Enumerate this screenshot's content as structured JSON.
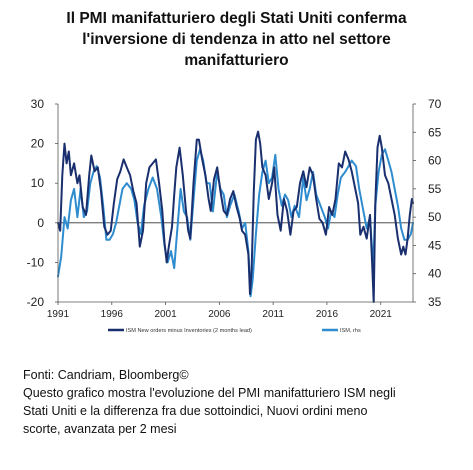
{
  "title_lines": [
    "Il PMI manifatturiero degli Stati Uniti conferma",
    "l'inversione di tendenza in atto nel settore",
    "manifatturiero"
  ],
  "caption_lines": [
    "Fonti: Candriam, Bloomberg©",
    "Questo grafico mostra l'evoluzione del PMI manifatturiero ISM negli",
    "Stati Uniti e la differenza fra due sottoindici, Nuovi ordini meno",
    "scorte, avanzata per 2 mesi"
  ],
  "chart_data": {
    "type": "line",
    "x_range": [
      1991,
      2024
    ],
    "x_ticks": [
      "1991",
      "1996",
      "2001",
      "2006",
      "2011",
      "2016",
      "2021"
    ],
    "y_left": {
      "range": [
        -20,
        30
      ],
      "ticks": [
        "30",
        "20",
        "10",
        "0",
        "-10",
        "-20"
      ]
    },
    "y_right": {
      "range": [
        35,
        70
      ],
      "ticks": [
        "70",
        "65",
        "60",
        "55",
        "50",
        "45",
        "40",
        "35"
      ]
    },
    "zero_line": true,
    "legend_position": "bottom",
    "colors": {
      "series1": "#1a2f6e",
      "series2": "#2e8ccf"
    },
    "series": [
      {
        "name": "ISM New orders minus Inventories (2 months lead)",
        "axis": "left",
        "points": [
          [
            1991.0,
            0
          ],
          [
            1991.2,
            -2
          ],
          [
            1991.4,
            12
          ],
          [
            1991.6,
            20
          ],
          [
            1991.8,
            15
          ],
          [
            1992.0,
            18
          ],
          [
            1992.2,
            12
          ],
          [
            1992.5,
            15
          ],
          [
            1992.8,
            10
          ],
          [
            1993.0,
            12
          ],
          [
            1993.3,
            4
          ],
          [
            1993.6,
            2
          ],
          [
            1993.9,
            12
          ],
          [
            1994.1,
            17
          ],
          [
            1994.4,
            13
          ],
          [
            1994.7,
            14
          ],
          [
            1995.0,
            8
          ],
          [
            1995.3,
            -1
          ],
          [
            1995.6,
            -3
          ],
          [
            1995.9,
            -2
          ],
          [
            1996.2,
            5
          ],
          [
            1996.5,
            11
          ],
          [
            1996.8,
            13
          ],
          [
            1997.1,
            16
          ],
          [
            1997.4,
            14
          ],
          [
            1997.7,
            12
          ],
          [
            1998.0,
            8
          ],
          [
            1998.3,
            5
          ],
          [
            1998.6,
            -6
          ],
          [
            1998.9,
            -2
          ],
          [
            1999.2,
            10
          ],
          [
            1999.5,
            14
          ],
          [
            1999.8,
            15
          ],
          [
            2000.1,
            16
          ],
          [
            2000.4,
            10
          ],
          [
            2000.7,
            3
          ],
          [
            2000.9,
            -5
          ],
          [
            2001.1,
            -10
          ],
          [
            2001.3,
            -6
          ],
          [
            2001.6,
            -1
          ],
          [
            2001.8,
            7
          ],
          [
            2002.0,
            14
          ],
          [
            2002.3,
            19
          ],
          [
            2002.6,
            12
          ],
          [
            2002.9,
            3
          ],
          [
            2003.1,
            -2
          ],
          [
            2003.3,
            -4
          ],
          [
            2003.6,
            10
          ],
          [
            2003.9,
            21
          ],
          [
            2004.1,
            21
          ],
          [
            2004.4,
            16
          ],
          [
            2004.7,
            12
          ],
          [
            2005.0,
            6
          ],
          [
            2005.2,
            3
          ],
          [
            2005.5,
            11
          ],
          [
            2005.8,
            14
          ],
          [
            2006.1,
            8
          ],
          [
            2006.4,
            3
          ],
          [
            2006.7,
            2
          ],
          [
            2007.0,
            6
          ],
          [
            2007.3,
            8
          ],
          [
            2007.6,
            4
          ],
          [
            2007.9,
            1
          ],
          [
            2008.1,
            -2
          ],
          [
            2008.4,
            -3
          ],
          [
            2008.7,
            -8
          ],
          [
            2008.85,
            -18
          ],
          [
            2009.0,
            -12
          ],
          [
            2009.2,
            8
          ],
          [
            2009.4,
            21
          ],
          [
            2009.6,
            23
          ],
          [
            2009.8,
            20
          ],
          [
            2010.0,
            14
          ],
          [
            2010.3,
            12
          ],
          [
            2010.6,
            6
          ],
          [
            2010.9,
            10
          ],
          [
            2011.1,
            14
          ],
          [
            2011.4,
            2
          ],
          [
            2011.7,
            -2
          ],
          [
            2012.0,
            6
          ],
          [
            2012.3,
            3
          ],
          [
            2012.6,
            -3
          ],
          [
            2012.9,
            3
          ],
          [
            2013.2,
            4
          ],
          [
            2013.5,
            10
          ],
          [
            2013.8,
            13
          ],
          [
            2014.1,
            9
          ],
          [
            2014.4,
            14
          ],
          [
            2014.7,
            12
          ],
          [
            2015.0,
            6
          ],
          [
            2015.3,
            1
          ],
          [
            2015.6,
            0
          ],
          [
            2015.9,
            -3
          ],
          [
            2016.2,
            4
          ],
          [
            2016.5,
            2
          ],
          [
            2016.8,
            6
          ],
          [
            2017.1,
            15
          ],
          [
            2017.4,
            14
          ],
          [
            2017.7,
            18
          ],
          [
            2018.0,
            16
          ],
          [
            2018.3,
            13
          ],
          [
            2018.6,
            9
          ],
          [
            2018.9,
            5
          ],
          [
            2019.1,
            -3
          ],
          [
            2019.4,
            -1
          ],
          [
            2019.7,
            -4
          ],
          [
            2020.0,
            2
          ],
          [
            2020.2,
            -10
          ],
          [
            2020.35,
            -20
          ],
          [
            2020.5,
            5
          ],
          [
            2020.7,
            19
          ],
          [
            2020.9,
            22
          ],
          [
            2021.1,
            19
          ],
          [
            2021.4,
            12
          ],
          [
            2021.7,
            10
          ],
          [
            2022.0,
            6
          ],
          [
            2022.3,
            2
          ],
          [
            2022.6,
            -4
          ],
          [
            2022.9,
            -8
          ],
          [
            2023.1,
            -6
          ],
          [
            2023.3,
            -8
          ],
          [
            2023.5,
            -4
          ],
          [
            2023.7,
            2
          ],
          [
            2023.9,
            6
          ],
          [
            2024.0,
            5
          ]
        ]
      },
      {
        "name": "ISM, rhs",
        "axis": "right",
        "points": [
          [
            1991.0,
            39.5
          ],
          [
            1991.3,
            43
          ],
          [
            1991.6,
            50
          ],
          [
            1991.9,
            48
          ],
          [
            1992.2,
            53
          ],
          [
            1992.5,
            55
          ],
          [
            1992.8,
            50
          ],
          [
            1993.1,
            55
          ],
          [
            1993.4,
            50
          ],
          [
            1993.7,
            51
          ],
          [
            1994.0,
            56
          ],
          [
            1994.3,
            58
          ],
          [
            1994.6,
            59
          ],
          [
            1994.9,
            57
          ],
          [
            1995.2,
            52
          ],
          [
            1995.5,
            46
          ],
          [
            1995.8,
            46
          ],
          [
            1996.1,
            47
          ],
          [
            1996.4,
            49
          ],
          [
            1996.7,
            52
          ],
          [
            1997.0,
            55
          ],
          [
            1997.4,
            56
          ],
          [
            1997.8,
            55
          ],
          [
            1998.1,
            53
          ],
          [
            1998.4,
            49
          ],
          [
            1998.7,
            47
          ],
          [
            1999.0,
            52
          ],
          [
            1999.4,
            55
          ],
          [
            1999.8,
            57
          ],
          [
            2000.2,
            55
          ],
          [
            2000.6,
            50
          ],
          [
            2000.9,
            45
          ],
          [
            2001.2,
            42
          ],
          [
            2001.5,
            44
          ],
          [
            2001.8,
            41
          ],
          [
            2002.1,
            48
          ],
          [
            2002.4,
            55
          ],
          [
            2002.7,
            51
          ],
          [
            2003.0,
            50
          ],
          [
            2003.3,
            46
          ],
          [
            2003.6,
            53
          ],
          [
            2003.9,
            60
          ],
          [
            2004.2,
            62
          ],
          [
            2004.5,
            60
          ],
          [
            2004.8,
            56
          ],
          [
            2005.1,
            56
          ],
          [
            2005.4,
            51
          ],
          [
            2005.8,
            58
          ],
          [
            2006.1,
            55
          ],
          [
            2006.4,
            54
          ],
          [
            2006.7,
            50
          ],
          [
            2007.0,
            52
          ],
          [
            2007.4,
            54
          ],
          [
            2007.8,
            51
          ],
          [
            2008.1,
            48
          ],
          [
            2008.4,
            49
          ],
          [
            2008.7,
            44
          ],
          [
            2008.9,
            36
          ],
          [
            2009.1,
            39
          ],
          [
            2009.4,
            47
          ],
          [
            2009.7,
            54
          ],
          [
            2010.0,
            58
          ],
          [
            2010.3,
            60
          ],
          [
            2010.6,
            56
          ],
          [
            2010.9,
            57
          ],
          [
            2011.2,
            61
          ],
          [
            2011.5,
            55
          ],
          [
            2011.8,
            52
          ],
          [
            2012.1,
            54
          ],
          [
            2012.4,
            53
          ],
          [
            2012.7,
            50
          ],
          [
            2013.0,
            52
          ],
          [
            2013.4,
            50
          ],
          [
            2013.8,
            57
          ],
          [
            2014.1,
            53
          ],
          [
            2014.4,
            55
          ],
          [
            2014.7,
            58
          ],
          [
            2015.0,
            54
          ],
          [
            2015.4,
            52
          ],
          [
            2015.8,
            50
          ],
          [
            2016.1,
            48
          ],
          [
            2016.4,
            51
          ],
          [
            2016.7,
            50
          ],
          [
            2017.0,
            54
          ],
          [
            2017.3,
            57
          ],
          [
            2017.7,
            58
          ],
          [
            2018.0,
            59
          ],
          [
            2018.3,
            60
          ],
          [
            2018.7,
            59
          ],
          [
            2019.0,
            55
          ],
          [
            2019.3,
            52
          ],
          [
            2019.7,
            48
          ],
          [
            2020.0,
            50
          ],
          [
            2020.3,
            41
          ],
          [
            2020.5,
            52
          ],
          [
            2020.8,
            58
          ],
          [
            2021.1,
            61
          ],
          [
            2021.4,
            62
          ],
          [
            2021.7,
            60
          ],
          [
            2022.0,
            58
          ],
          [
            2022.3,
            55
          ],
          [
            2022.6,
            52
          ],
          [
            2022.9,
            48
          ],
          [
            2023.2,
            46
          ],
          [
            2023.5,
            46
          ],
          [
            2023.8,
            47
          ],
          [
            2024.0,
            49
          ]
        ]
      }
    ]
  }
}
